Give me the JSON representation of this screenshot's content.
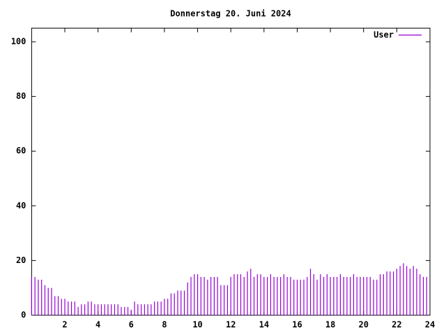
{
  "chart_data": {
    "type": "impulse",
    "title": "Donnerstag 20. Juni 2024",
    "x": [
      0,
      0.2,
      0.4,
      0.6,
      0.8,
      1,
      1.2,
      1.4,
      1.6,
      1.8,
      2,
      2.2,
      2.4,
      2.6,
      2.8,
      3,
      3.2,
      3.4,
      3.6,
      3.8,
      4,
      4.2,
      4.4,
      4.6,
      4.8,
      5,
      5.2,
      5.4,
      5.6,
      5.8,
      6,
      6.2,
      6.4,
      6.6,
      6.8,
      7,
      7.2,
      7.4,
      7.6,
      7.8,
      8,
      8.2,
      8.4,
      8.6,
      8.8,
      9,
      9.2,
      9.4,
      9.6,
      9.8,
      10,
      10.2,
      10.4,
      10.6,
      10.8,
      11,
      11.2,
      11.4,
      11.6,
      11.8,
      12,
      12.2,
      12.4,
      12.6,
      12.8,
      13,
      13.2,
      13.4,
      13.6,
      13.8,
      14,
      14.2,
      14.4,
      14.6,
      14.8,
      15,
      15.2,
      15.4,
      15.6,
      15.8,
      16,
      16.2,
      16.4,
      16.6,
      16.8,
      17,
      17.2,
      17.4,
      17.6,
      17.8,
      18,
      18.2,
      18.4,
      18.6,
      18.8,
      19,
      19.2,
      19.4,
      19.6,
      19.8,
      20,
      20.2,
      20.4,
      20.6,
      20.8,
      21,
      21.2,
      21.4,
      21.6,
      21.8,
      22,
      22.2,
      22.4,
      22.6,
      22.8,
      23,
      23.2,
      23.4,
      23.6,
      23.8
    ],
    "series": [
      {
        "name": "User",
        "color": "#9400d3",
        "values": [
          14,
          14,
          13,
          13,
          11,
          10,
          10,
          7,
          7,
          6,
          6,
          5,
          5,
          5,
          3,
          4,
          4,
          5,
          5,
          4,
          4,
          4,
          4,
          4,
          4,
          4,
          4,
          3,
          3,
          3,
          2,
          5,
          4,
          4,
          4,
          4,
          4,
          5,
          5,
          5,
          6,
          6,
          8,
          8,
          9,
          9,
          9,
          12,
          14,
          15,
          15,
          14,
          14,
          13,
          14,
          14,
          14,
          11,
          11,
          11,
          14,
          15,
          15,
          15,
          14,
          16,
          17,
          14,
          15,
          15,
          14,
          14,
          15,
          14,
          14,
          14,
          15,
          14,
          14,
          13,
          13,
          13,
          13,
          14,
          17,
          15,
          13,
          15,
          14,
          15,
          14,
          14,
          14,
          15,
          14,
          14,
          14,
          15,
          14,
          14,
          14,
          14,
          14,
          13,
          13,
          15,
          15,
          16,
          16,
          16,
          17,
          18,
          19,
          18,
          17,
          18,
          17,
          15,
          14,
          14
        ]
      }
    ],
    "xlim": [
      0,
      24
    ],
    "xticks": [
      2,
      4,
      6,
      8,
      10,
      12,
      14,
      16,
      18,
      20,
      22,
      24
    ],
    "ylim": [
      0,
      105
    ],
    "yticks": [
      0,
      20,
      40,
      60,
      80,
      100
    ],
    "legend": "top-right"
  }
}
